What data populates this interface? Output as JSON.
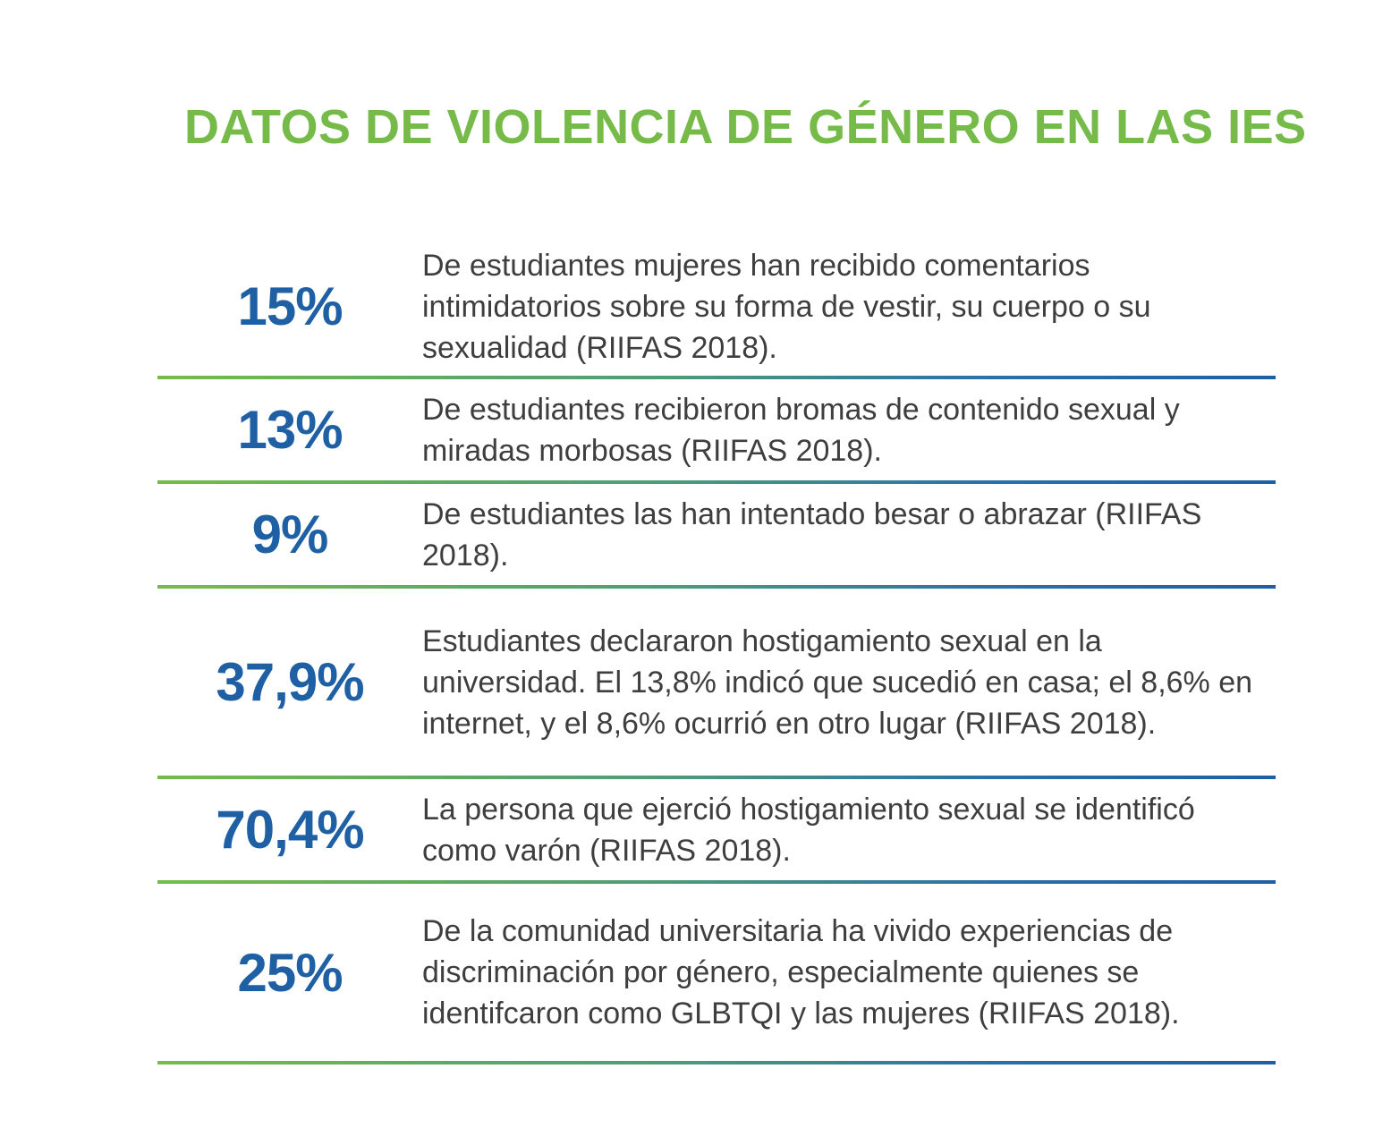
{
  "title": "DATOS DE VIOLENCIA DE GÉNERO EN LAS IES",
  "stats": [
    {
      "value": "15%",
      "text": "De estudiantes mujeres han recibido comentarios intimidatorios sobre su forma de vestir, su cuerpo o su sexualidad (RIIFAS 2018)."
    },
    {
      "value": "13%",
      "text": "De estudiantes recibieron bromas de contenido sexual y miradas morbosas (RIIFAS 2018)."
    },
    {
      "value": "9%",
      "text": "De estudiantes las han intentado besar o abrazar (RIIFAS 2018)."
    },
    {
      "value": "37,9%",
      "text": "Estudiantes declararon hostigamiento sexual en la universidad. El 13,8% indicó que sucedió en casa; el 8,6% en internet, y el 8,6% ocurrió en otro lugar (RIIFAS 2018)."
    },
    {
      "value": "70,4%",
      "text": "La persona que ejerció hostigamiento sexual se identificó como varón (RIIFAS 2018)."
    },
    {
      "value": "25%",
      "text": "De la comunidad universitaria ha vivido experiencias de discriminación por género, especialmente quienes se identifcaron como GLBTQI y las mujeres (RIIFAS 2018)."
    }
  ],
  "colors": {
    "title": "#76bb4a",
    "percent": "#1f60a4",
    "text": "#3e3e3e",
    "divider_start": "#76bb4a",
    "divider_end": "#1f5fa5"
  }
}
